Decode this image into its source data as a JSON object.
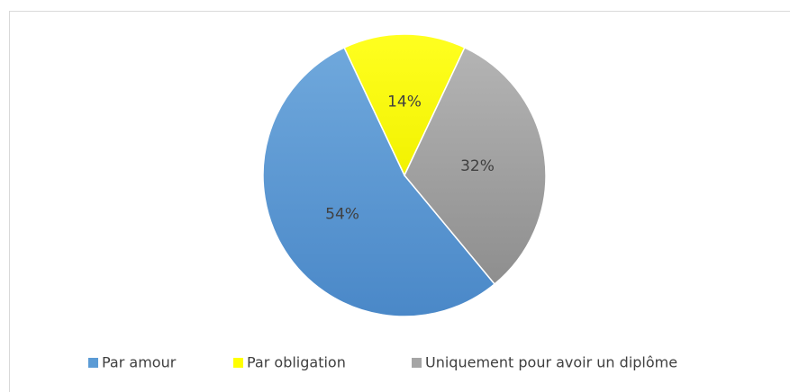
{
  "chart_data": {
    "type": "pie",
    "categories": [
      "Par amour",
      "Par obligation",
      "Uniquement pour avoir un diplôme"
    ],
    "values": [
      54,
      14,
      32
    ],
    "value_labels": [
      "54%",
      "14%",
      "32%"
    ],
    "colors": [
      "#5b9bd5",
      "#ffff00",
      "#a5a5a5"
    ],
    "legend": "bottom"
  }
}
